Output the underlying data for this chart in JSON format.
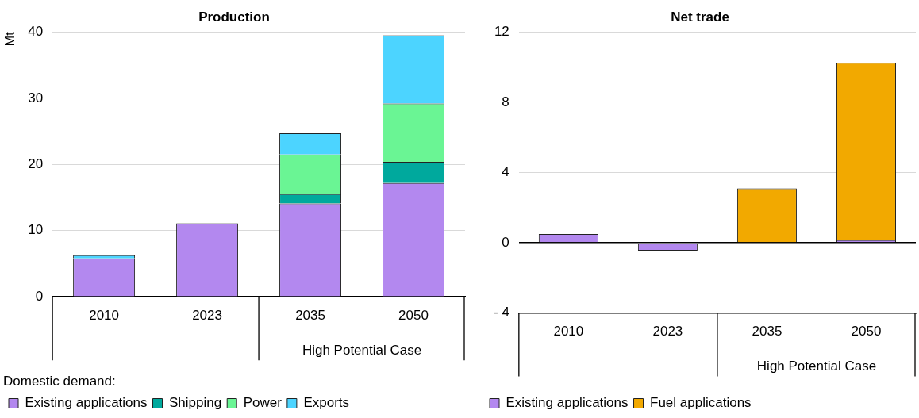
{
  "chart_data": [
    {
      "type": "bar",
      "title": "Production",
      "ylabel": "Mt",
      "legend_title": "Domestic demand:",
      "categories": [
        "2010",
        "2023",
        "2035",
        "2050"
      ],
      "stacked": true,
      "grid": "y",
      "legend": "bottom",
      "ylim": [
        0,
        40
      ],
      "yticks": [
        0,
        10,
        20,
        30,
        40
      ],
      "annotations": [
        "High Potential Case"
      ],
      "series": [
        {
          "name": "Existing applications",
          "color": "#b388ef",
          "values": [
            5.8,
            11.1,
            14.1,
            17.2
          ]
        },
        {
          "name": "Shipping",
          "color": "#00a99d",
          "values": [
            0,
            0,
            1.4,
            3.2
          ]
        },
        {
          "name": "Power",
          "color": "#6af594",
          "values": [
            0,
            0,
            6.0,
            8.8
          ]
        },
        {
          "name": "Exports",
          "color": "#4cd4ff",
          "values": [
            0.5,
            0,
            3.2,
            10.3
          ]
        }
      ]
    },
    {
      "type": "bar",
      "title": "Net trade",
      "categories": [
        "2010",
        "2023",
        "2035",
        "2050"
      ],
      "stacked": true,
      "grid": "y",
      "legend": "bottom",
      "ylim": [
        -4,
        12
      ],
      "yticks": [
        {
          "value": -4,
          "label": "- 4"
        },
        0,
        4,
        8,
        12
      ],
      "annotations": [
        "High Potential Case"
      ],
      "series": [
        {
          "name": "Existing applications",
          "color": "#b388ef",
          "values": [
            0.5,
            -0.45,
            null,
            0.15
          ]
        },
        {
          "name": "Fuel applications",
          "color": "#f2a900",
          "values": [
            0,
            0,
            3.1,
            10.1
          ]
        }
      ]
    }
  ]
}
